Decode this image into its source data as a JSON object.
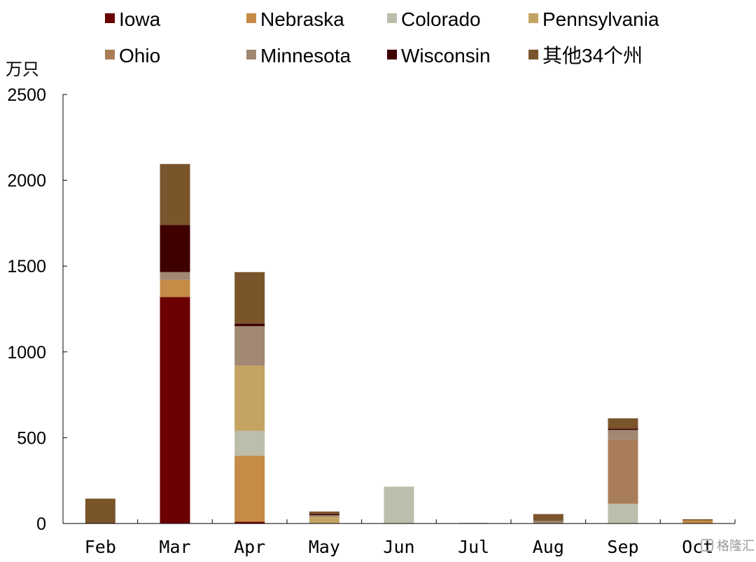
{
  "chart_data": {
    "type": "bar",
    "stacked": true,
    "unit_label": "万只",
    "categories": [
      "Feb",
      "Mar",
      "Apr",
      "May",
      "Jun",
      "Jul",
      "Aug",
      "Sep",
      "Oct"
    ],
    "ylim": [
      0,
      2500
    ],
    "yticks": [
      "0",
      "500",
      "1000",
      "1500",
      "2000",
      "2500"
    ],
    "grid": false,
    "legend_position": "top",
    "series": [
      {
        "name": "Iowa",
        "color": "#6B0000",
        "values": [
          0,
          1320,
          10,
          0,
          0,
          0,
          0,
          0,
          0
        ]
      },
      {
        "name": "Nebraska",
        "color": "#C58B47",
        "values": [
          0,
          100,
          385,
          0,
          0,
          0,
          0,
          0,
          18
        ]
      },
      {
        "name": "Colorado",
        "color": "#BDBDAC",
        "values": [
          0,
          0,
          145,
          0,
          215,
          0,
          0,
          115,
          0
        ]
      },
      {
        "name": "Pennsylvania",
        "color": "#C4A462",
        "values": [
          0,
          0,
          380,
          38,
          0,
          0,
          0,
          0,
          0
        ]
      },
      {
        "name": "Ohio",
        "color": "#A97D57",
        "values": [
          0,
          0,
          0,
          0,
          0,
          0,
          0,
          375,
          0
        ]
      },
      {
        "name": "Minnesota",
        "color": "#A08872",
        "values": [
          0,
          45,
          230,
          10,
          0,
          0,
          15,
          55,
          0
        ]
      },
      {
        "name": "Wisconsin",
        "color": "#3F0000",
        "values": [
          0,
          275,
          15,
          8,
          0,
          0,
          0,
          8,
          0
        ]
      },
      {
        "name": "其他34个州",
        "color": "#7A552C",
        "values": [
          145,
          355,
          300,
          14,
          0,
          3,
          40,
          60,
          7
        ]
      }
    ]
  },
  "watermark": "格隆汇"
}
